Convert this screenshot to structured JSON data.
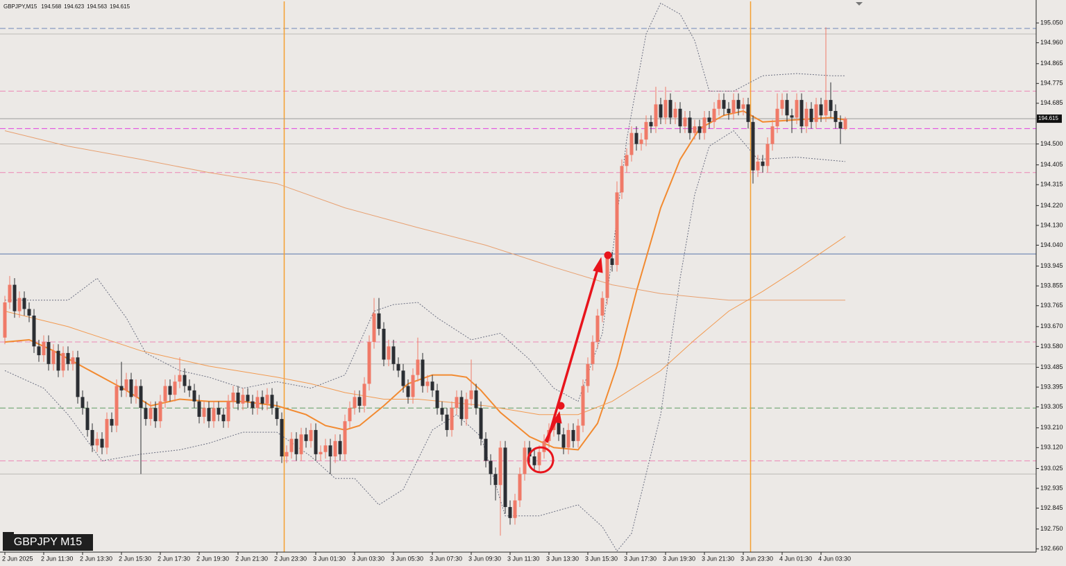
{
  "chart_data": {
    "type": "candlestick",
    "title": "GBPJPY M15",
    "symbol_info": "GBPJPY,M15",
    "open": [
      193.62,
      193.78,
      193.86,
      193.74,
      193.8,
      193.75,
      193.72,
      193.58,
      193.54,
      193.6,
      193.5,
      193.56,
      193.47,
      193.55,
      193.5,
      193.53,
      193.35,
      193.3,
      193.2,
      193.13,
      193.16,
      193.12,
      193.25,
      193.22,
      193.4,
      193.38,
      193.43,
      193.35,
      193.4,
      193.3,
      193.25,
      193.3,
      193.24,
      193.33,
      193.4,
      193.36,
      193.42,
      193.45,
      193.4,
      193.38,
      193.33,
      193.26,
      193.3,
      193.24,
      193.3,
      193.27,
      193.24,
      193.33,
      193.37,
      193.32,
      193.36,
      193.33,
      193.3,
      193.35,
      193.32,
      193.36,
      193.3,
      193.25,
      193.08,
      193.1,
      193.16,
      193.09,
      193.18,
      193.15,
      193.2,
      193.09,
      193.1,
      193.13,
      193.08,
      193.15,
      193.09,
      193.24,
      193.3,
      193.35,
      193.31,
      193.41,
      193.6,
      193.73,
      193.66,
      193.52,
      193.58,
      193.5,
      193.47,
      193.4,
      193.35,
      193.45,
      193.52,
      193.4,
      193.42,
      193.38,
      193.3,
      193.27,
      193.2,
      193.3,
      193.35,
      193.25,
      193.34,
      193.38,
      193.3,
      193.16,
      193.06,
      193.0,
      192.95,
      193.12,
      192.85,
      192.8,
      192.88,
      193.0,
      193.12,
      193.08,
      193.04,
      193.1,
      193.15,
      193.2,
      193.24,
      193.18,
      193.12,
      193.2,
      193.15,
      193.22,
      193.4,
      193.5,
      193.6,
      193.72,
      193.8,
      193.98,
      193.95,
      194.28,
      194.4,
      194.45,
      194.55,
      194.5,
      194.52,
      194.6,
      194.58,
      194.68,
      194.62,
      194.7,
      194.62,
      194.66,
      194.58,
      194.62,
      194.55,
      194.58,
      194.55,
      194.62,
      194.6,
      194.66,
      194.7,
      194.66,
      194.64,
      194.7,
      194.66,
      194.68,
      194.6,
      194.38,
      194.42,
      194.4,
      194.5,
      194.58,
      194.66,
      194.7,
      194.63,
      194.62,
      194.7,
      194.58,
      194.66,
      194.6,
      194.68,
      194.63,
      194.7,
      194.65,
      194.6,
      194.568
    ],
    "high": [
      193.81,
      193.9,
      193.89,
      193.83,
      193.83,
      193.78,
      193.75,
      193.61,
      193.63,
      193.63,
      193.59,
      193.59,
      193.58,
      193.58,
      193.56,
      193.56,
      193.38,
      193.33,
      193.23,
      193.19,
      193.19,
      193.28,
      193.28,
      193.43,
      193.51,
      193.46,
      193.46,
      193.43,
      193.43,
      193.33,
      193.33,
      193.33,
      193.36,
      193.43,
      193.43,
      193.45,
      193.53,
      193.48,
      193.43,
      193.41,
      193.36,
      193.33,
      193.33,
      193.33,
      193.33,
      193.3,
      193.36,
      193.4,
      193.4,
      193.39,
      193.39,
      193.36,
      193.38,
      193.38,
      193.39,
      193.39,
      193.33,
      193.28,
      193.13,
      193.19,
      193.19,
      193.21,
      193.21,
      193.23,
      193.23,
      193.13,
      193.16,
      193.16,
      193.18,
      193.18,
      193.27,
      193.33,
      193.38,
      193.38,
      193.44,
      193.63,
      193.8,
      193.8,
      193.69,
      193.61,
      193.61,
      193.53,
      193.5,
      193.43,
      193.48,
      193.62,
      193.55,
      193.45,
      193.45,
      193.41,
      193.33,
      193.3,
      193.33,
      193.38,
      193.38,
      193.37,
      193.52,
      193.41,
      193.33,
      193.19,
      193.09,
      193.03,
      193.15,
      193.15,
      192.88,
      192.91,
      193.03,
      193.15,
      193.15,
      193.11,
      193.13,
      193.18,
      193.23,
      193.27,
      193.27,
      193.21,
      193.23,
      193.23,
      193.25,
      193.43,
      193.53,
      193.63,
      193.75,
      193.83,
      194.01,
      194.01,
      194.33,
      194.43,
      194.48,
      194.58,
      194.58,
      194.55,
      194.63,
      194.63,
      194.76,
      194.71,
      194.76,
      194.73,
      194.69,
      194.69,
      194.65,
      194.65,
      194.61,
      194.61,
      194.65,
      194.65,
      194.69,
      194.73,
      194.73,
      194.69,
      194.73,
      194.73,
      194.71,
      194.71,
      194.63,
      194.45,
      194.45,
      194.53,
      194.61,
      194.73,
      194.73,
      194.73,
      194.66,
      194.73,
      194.73,
      194.69,
      194.69,
      194.71,
      194.71,
      195.03,
      194.78,
      194.68,
      194.63,
      194.623
    ],
    "low": [
      193.59,
      193.75,
      193.71,
      193.71,
      193.72,
      193.69,
      193.55,
      193.51,
      193.51,
      193.47,
      193.47,
      193.44,
      193.44,
      193.47,
      193.47,
      193.32,
      193.27,
      193.17,
      193.1,
      193.1,
      193.09,
      193.09,
      193.19,
      193.19,
      193.35,
      193.35,
      193.32,
      193.32,
      193.0,
      193.22,
      193.22,
      193.21,
      193.21,
      193.3,
      193.33,
      193.33,
      193.39,
      193.37,
      193.35,
      193.3,
      193.23,
      193.23,
      193.21,
      193.21,
      193.24,
      193.21,
      193.21,
      193.3,
      193.29,
      193.29,
      193.3,
      193.27,
      193.27,
      193.29,
      193.29,
      193.27,
      193.22,
      193.05,
      193.05,
      193.07,
      193.06,
      193.06,
      193.12,
      193.12,
      193.06,
      193.06,
      193.07,
      193.0,
      193.05,
      193.06,
      193.06,
      193.21,
      193.27,
      193.28,
      193.28,
      193.38,
      193.57,
      193.63,
      193.49,
      193.49,
      193.47,
      193.44,
      193.37,
      193.32,
      193.32,
      193.42,
      193.37,
      193.37,
      193.35,
      193.27,
      193.24,
      193.17,
      193.17,
      193.27,
      193.22,
      193.22,
      193.31,
      193.27,
      193.13,
      193.03,
      192.95,
      192.88,
      192.72,
      192.82,
      192.77,
      192.77,
      192.85,
      192.97,
      193.05,
      193.01,
      193.01,
      193.07,
      193.12,
      193.17,
      193.15,
      193.09,
      193.09,
      193.12,
      193.12,
      193.19,
      193.37,
      193.47,
      193.57,
      193.69,
      193.77,
      193.92,
      193.92,
      194.25,
      194.37,
      194.42,
      194.47,
      194.47,
      194.49,
      194.55,
      194.55,
      194.59,
      194.59,
      194.59,
      194.59,
      194.55,
      194.55,
      194.52,
      194.52,
      194.52,
      194.52,
      194.57,
      194.57,
      194.63,
      194.63,
      194.61,
      194.61,
      194.63,
      194.63,
      194.57,
      194.32,
      194.35,
      194.37,
      194.37,
      194.47,
      194.55,
      194.63,
      194.6,
      194.55,
      194.59,
      194.55,
      194.55,
      194.57,
      194.57,
      194.6,
      194.6,
      194.62,
      194.57,
      194.5,
      194.563
    ],
    "close": [
      193.78,
      193.86,
      193.74,
      193.8,
      193.75,
      193.72,
      193.58,
      193.54,
      193.6,
      193.5,
      193.56,
      193.47,
      193.55,
      193.5,
      193.53,
      193.35,
      193.3,
      193.2,
      193.13,
      193.16,
      193.12,
      193.25,
      193.22,
      193.4,
      193.38,
      193.43,
      193.35,
      193.4,
      193.3,
      193.25,
      193.3,
      193.24,
      193.33,
      193.4,
      193.36,
      193.42,
      193.45,
      193.4,
      193.38,
      193.33,
      193.26,
      193.3,
      193.24,
      193.3,
      193.27,
      193.24,
      193.33,
      193.37,
      193.32,
      193.36,
      193.33,
      193.3,
      193.35,
      193.32,
      193.36,
      193.3,
      193.25,
      193.08,
      193.1,
      193.16,
      193.09,
      193.18,
      193.15,
      193.2,
      193.09,
      193.1,
      193.13,
      193.08,
      193.15,
      193.09,
      193.24,
      193.3,
      193.35,
      193.31,
      193.41,
      193.6,
      193.73,
      193.66,
      193.52,
      193.58,
      193.5,
      193.47,
      193.4,
      193.35,
      193.45,
      193.52,
      193.4,
      193.42,
      193.38,
      193.3,
      193.27,
      193.2,
      193.3,
      193.35,
      193.25,
      193.34,
      193.38,
      193.3,
      193.16,
      193.06,
      193.0,
      192.95,
      193.12,
      192.85,
      192.8,
      192.88,
      193.0,
      193.12,
      193.08,
      193.04,
      193.1,
      193.15,
      193.2,
      193.24,
      193.18,
      193.12,
      193.2,
      193.15,
      193.22,
      193.4,
      193.5,
      193.6,
      193.72,
      193.8,
      193.98,
      193.95,
      194.28,
      194.4,
      194.45,
      194.55,
      194.5,
      194.52,
      194.6,
      194.58,
      194.68,
      194.62,
      194.7,
      194.62,
      194.66,
      194.58,
      194.62,
      194.55,
      194.58,
      194.55,
      194.62,
      194.6,
      194.66,
      194.7,
      194.66,
      194.64,
      194.7,
      194.66,
      194.68,
      194.6,
      194.38,
      194.42,
      194.4,
      194.5,
      194.58,
      194.66,
      194.7,
      194.63,
      194.62,
      194.7,
      194.58,
      194.66,
      194.6,
      194.68,
      194.63,
      194.7,
      194.65,
      194.6,
      194.57,
      194.615
    ],
    "up_color": "#f07a68",
    "down_color": "#2b2e33",
    "ylim": [
      192.645,
      195.148
    ],
    "yticks": [
      {
        "value": 195.05,
        "label": "195.050"
      },
      {
        "value": 194.96,
        "label": "194.960"
      },
      194.865,
      194.775,
      194.685,
      {
        "value": 194.5,
        "label": "194.500"
      },
      194.405,
      194.315,
      {
        "value": 194.22,
        "label": "194.220"
      },
      {
        "value": 194.13,
        "label": "194.130"
      },
      {
        "value": 194.04,
        "label": "194.040"
      },
      193.945,
      193.855,
      193.765,
      {
        "value": 193.67,
        "label": "193.670"
      },
      {
        "value": 193.58,
        "label": "193.580"
      },
      193.485,
      193.395,
      193.305,
      {
        "value": 193.21,
        "label": "193.210"
      },
      {
        "value": 193.12,
        "label": "193.120"
      },
      193.025,
      192.935,
      192.845,
      {
        "value": 192.75,
        "label": "192.750"
      },
      {
        "value": 192.66,
        "label": "192.660"
      }
    ],
    "xticks": [
      {
        "value": 0,
        "label": "2 Jun 2025"
      },
      {
        "value": 8,
        "label": "2 Jun 11:30"
      },
      {
        "value": 16,
        "label": "2 Jun 13:30"
      },
      {
        "value": 24,
        "label": "2 Jun 15:30"
      },
      {
        "value": 32,
        "label": "2 Jun 17:30"
      },
      {
        "value": 40,
        "label": "2 Jun 19:30"
      },
      {
        "value": 48,
        "label": "2 Jun 21:30"
      },
      {
        "value": 56,
        "label": "2 Jun 23:30"
      },
      {
        "value": 64,
        "label": "3 Jun 01:30"
      },
      {
        "value": 72,
        "label": "3 Jun 03:30"
      },
      {
        "value": 80,
        "label": "3 Jun 05:30"
      },
      {
        "value": 88,
        "label": "3 Jun 07:30"
      },
      {
        "value": 96,
        "label": "3 Jun 09:30"
      },
      {
        "value": 104,
        "label": "3 Jun 11:30"
      },
      {
        "value": 112,
        "label": "3 Jun 13:30"
      },
      {
        "value": 120,
        "label": "3 Jun 15:30"
      },
      {
        "value": 128,
        "label": "3 Jun 17:30"
      },
      {
        "value": 136,
        "label": "3 Jun 19:30"
      },
      {
        "value": 144,
        "label": "3 Jun 21:30"
      },
      {
        "value": 152,
        "label": "3 Jun 23:30"
      },
      {
        "value": 160,
        "label": "4 Jun 01:30"
      },
      {
        "value": 168,
        "label": "4 Jun 03:30"
      }
    ],
    "lines": [
      {
        "color": "#f28a30",
        "width": 2,
        "dash": false,
        "x": [
          0,
          5,
          10,
          15,
          20,
          25,
          30,
          36,
          42,
          49,
          56,
          62,
          66,
          70,
          73,
          78,
          83,
          88,
          92,
          95,
          98,
          102,
          108,
          113,
          118,
          122,
          126,
          130,
          135,
          139,
          143,
          148,
          152,
          156,
          163,
          170,
          173
        ],
        "values": [
          193.6,
          193.61,
          193.56,
          193.5,
          193.44,
          193.38,
          193.31,
          193.34,
          193.33,
          193.33,
          193.31,
          193.27,
          193.22,
          193.2,
          193.22,
          193.31,
          193.41,
          193.45,
          193.45,
          193.44,
          193.38,
          193.28,
          193.17,
          193.12,
          193.11,
          193.23,
          193.49,
          193.83,
          194.21,
          194.43,
          194.57,
          194.63,
          194.65,
          194.6,
          194.61,
          194.62,
          194.61
        ]
      },
      {
        "color": "#e8a070",
        "width": 1,
        "dash": false,
        "x": [
          0,
          13,
          28,
          42,
          56,
          70,
          85,
          99,
          113,
          125,
          135,
          149,
          163,
          173
        ],
        "values": [
          194.56,
          194.49,
          194.43,
          194.37,
          194.32,
          194.21,
          194.12,
          194.04,
          193.94,
          193.86,
          193.82,
          193.79,
          193.79,
          193.79
        ]
      },
      {
        "color": "#f29a50",
        "width": 1,
        "dash": false,
        "x": [
          0,
          13,
          28,
          42,
          56,
          63,
          70,
          78,
          85,
          99,
          110,
          118,
          125,
          135,
          142,
          149,
          156,
          163,
          173
        ],
        "values": [
          193.74,
          193.67,
          193.56,
          193.49,
          193.44,
          193.41,
          193.37,
          193.34,
          193.34,
          193.31,
          193.27,
          193.27,
          193.33,
          193.47,
          193.61,
          193.74,
          193.83,
          193.93,
          194.08
        ]
      },
      {
        "color": "#6a6e80",
        "width": 1,
        "dash": true,
        "x": [
          0,
          8,
          13,
          19,
          25,
          29,
          36,
          42,
          49,
          56,
          63,
          70,
          76,
          80,
          85,
          89,
          96,
          102,
          108,
          113,
          118,
          123,
          128,
          132,
          135,
          139,
          142,
          145,
          150,
          156,
          163,
          170,
          173
        ],
        "values": [
          193.79,
          193.79,
          193.79,
          193.89,
          193.71,
          193.55,
          193.47,
          193.44,
          193.39,
          193.42,
          193.39,
          193.45,
          193.74,
          193.77,
          193.78,
          193.71,
          193.61,
          193.64,
          193.52,
          193.39,
          193.33,
          193.64,
          194.52,
          195.0,
          195.14,
          195.09,
          194.97,
          194.74,
          194.74,
          194.81,
          194.82,
          194.81,
          194.81
        ]
      },
      {
        "color": "#6a6e80",
        "width": 1,
        "dash": true,
        "x": [
          0,
          8,
          13,
          20,
          28,
          36,
          42,
          49,
          56,
          63,
          68,
          72,
          77,
          82,
          88,
          93,
          98,
          103,
          110,
          118,
          123,
          126,
          129,
          135,
          139,
          142,
          145,
          150,
          155,
          163,
          173
        ],
        "values": [
          193.47,
          193.39,
          193.27,
          193.06,
          193.09,
          193.11,
          193.14,
          193.19,
          193.19,
          193.08,
          192.98,
          192.98,
          192.86,
          192.93,
          193.2,
          193.27,
          193.17,
          192.81,
          192.81,
          192.86,
          192.76,
          192.65,
          192.73,
          193.27,
          193.89,
          194.27,
          194.49,
          194.56,
          194.43,
          194.44,
          194.42
        ]
      }
    ],
    "levels": [
      {
        "value": 195.025,
        "color": "#7088b8",
        "dash": true
      },
      {
        "value": 195.0,
        "color": "#bdbab6",
        "dash": false
      },
      {
        "value": 194.74,
        "color": "#ec86b4",
        "dash": true
      },
      {
        "value": 194.57,
        "color": "#e040e0",
        "dash": true
      },
      {
        "value": 194.5,
        "color": "#bdbab6",
        "dash": false
      },
      {
        "value": 194.37,
        "color": "#ec86b4",
        "dash": true
      },
      {
        "value": 194.0,
        "color": "#5874aa",
        "dash": false
      },
      {
        "value": 193.6,
        "color": "#ec86b4",
        "dash": true
      },
      {
        "value": 193.5,
        "color": "#bdbab6",
        "dash": false
      },
      {
        "value": 193.3,
        "color": "#5d9c62",
        "dash": true
      },
      {
        "value": 193.06,
        "color": "#ec86b4",
        "dash": true
      },
      {
        "value": 193.0,
        "color": "#bdbab6",
        "dash": false
      }
    ],
    "day_separators": [
      57.5,
      153.5
    ],
    "separator_color": "#f5a030"
  }
}
